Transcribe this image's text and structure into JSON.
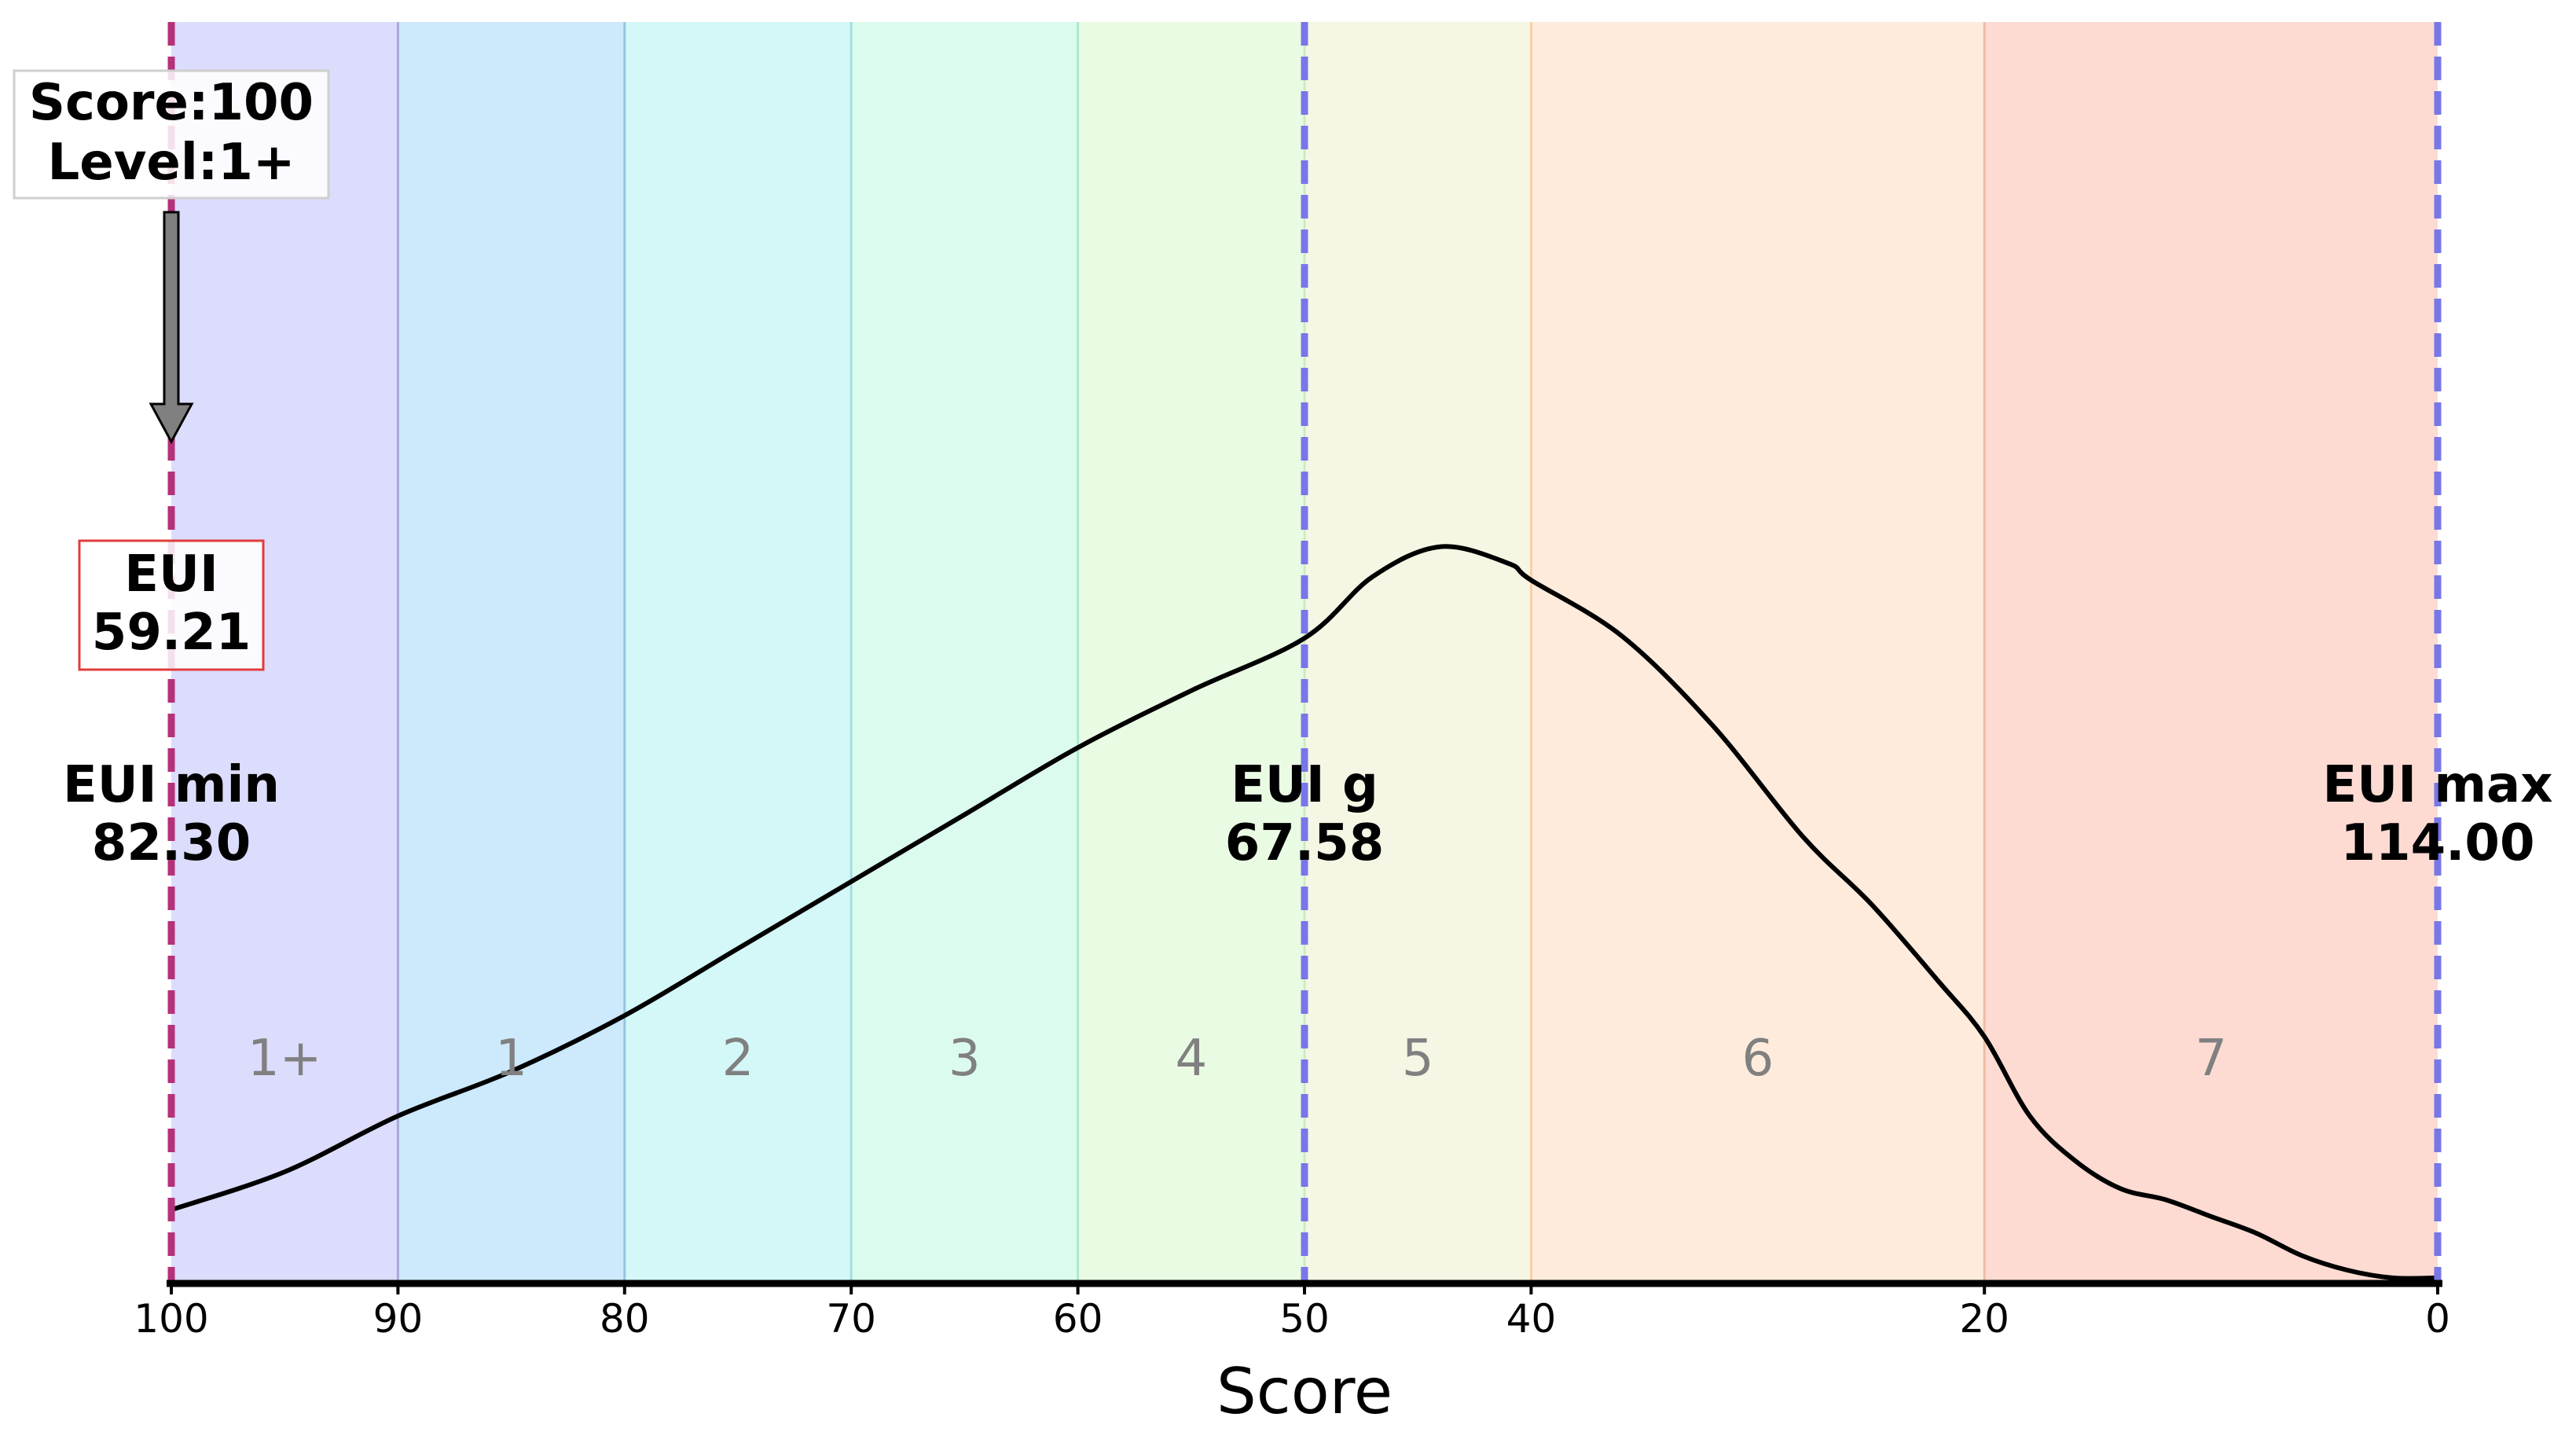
{
  "chart_data": {
    "type": "area",
    "xlabel": "Score",
    "x_axis_reversed": true,
    "xlim": [
      100,
      0
    ],
    "ticks": [
      100,
      90,
      80,
      70,
      60,
      50,
      40,
      20,
      0
    ],
    "level_bands": [
      {
        "label": "1+",
        "from": 100,
        "to": 90,
        "color": "#dcdcfc"
      },
      {
        "label": "1",
        "from": 90,
        "to": 80,
        "color": "#cde9fc"
      },
      {
        "label": "2",
        "from": 80,
        "to": 70,
        "color": "#d4f7f7"
      },
      {
        "label": "3",
        "from": 70,
        "to": 60,
        "color": "#dcfbef"
      },
      {
        "label": "4",
        "from": 60,
        "to": 50,
        "color": "#eafbe4"
      },
      {
        "label": "5",
        "from": 50,
        "to": 40,
        "color": "#f5f7e4"
      },
      {
        "label": "6",
        "from": 40,
        "to": 20,
        "color": "#feebdc"
      },
      {
        "label": "7",
        "from": 20,
        "to": 0,
        "color": "#fddbd3"
      }
    ],
    "band_edge_colors": [
      "#a7a9d9",
      "#95c4df",
      "#a1e0e0",
      "#a9e9d1",
      "#ccecbf",
      "#f6d0a4",
      "#f0bca5"
    ],
    "density_curve": {
      "x": [
        100,
        95,
        90,
        85,
        80,
        75,
        70,
        65,
        60,
        55,
        50,
        47,
        44,
        41,
        40,
        36,
        32,
        28,
        25,
        22,
        20,
        18,
        16,
        14,
        12,
        10,
        8,
        6,
        4,
        2,
        0
      ],
      "y": [
        0.066,
        0.1,
        0.15,
        0.19,
        0.24,
        0.3,
        0.36,
        0.42,
        0.48,
        0.531,
        0.578,
        0.633,
        0.66,
        0.645,
        0.63,
        0.58,
        0.5,
        0.4,
        0.34,
        0.27,
        0.221,
        0.15,
        0.11,
        0.085,
        0.075,
        0.06,
        0.045,
        0.025,
        0.012,
        0.005,
        0.005
      ],
      "ylim": [
        0,
        1.13
      ]
    },
    "reference_lines": [
      {
        "score": 100,
        "label": "EUI min",
        "value": "82.30",
        "color": "#b5317a"
      },
      {
        "score": 50,
        "label": "EUI g",
        "value": "67.58",
        "color": "#7777e8"
      },
      {
        "score": 0,
        "label": "EUI max",
        "value": "114.00",
        "color": "#7777e8"
      }
    ],
    "current": {
      "score_label": "Score:100",
      "level_label": "Level:1+",
      "score": 100,
      "eui_label": "EUI",
      "eui_value": "59.21"
    },
    "colors": {
      "curve": "#000000",
      "arrow_fill": "#808080",
      "eui_box_border": "#e03c3c",
      "score_box_border": "#cfcfcf",
      "axis": "#000000"
    }
  }
}
